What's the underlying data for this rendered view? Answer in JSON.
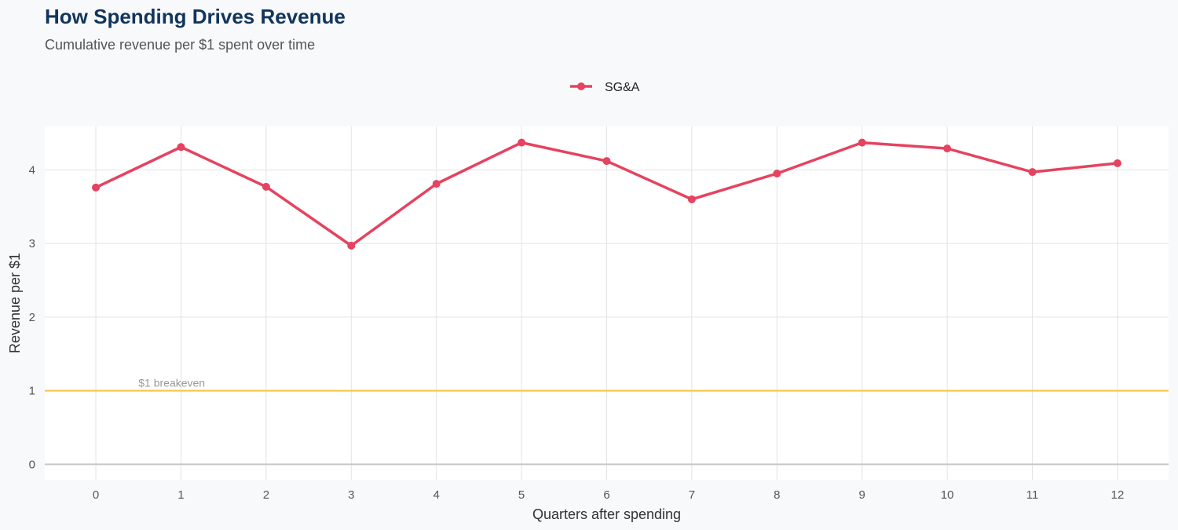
{
  "chart_data": {
    "type": "line",
    "title": "How Spending Drives Revenue",
    "subtitle": "Cumulative revenue per $1 spent over time",
    "xlabel": "Quarters after spending",
    "ylabel": "Revenue per $1",
    "x": [
      0,
      1,
      2,
      3,
      4,
      5,
      6,
      7,
      8,
      9,
      10,
      11,
      12
    ],
    "series": [
      {
        "name": "SG&A",
        "color": "#e5435f",
        "values": [
          3.76,
          4.31,
          3.77,
          2.97,
          3.81,
          4.37,
          4.12,
          3.6,
          3.95,
          4.37,
          4.29,
          3.97,
          4.09
        ]
      }
    ],
    "xlim": [
      -0.6,
      12.6
    ],
    "ylim": [
      -0.21,
      4.59
    ],
    "xticks": [
      0,
      1,
      2,
      3,
      4,
      5,
      6,
      7,
      8,
      9,
      10,
      11,
      12
    ],
    "yticks": [
      0,
      1,
      2,
      3,
      4
    ],
    "grid": true,
    "legend_position": "top",
    "reference_line": {
      "y": 1,
      "label": "$1 breakeven",
      "color": "#f5c542"
    }
  }
}
